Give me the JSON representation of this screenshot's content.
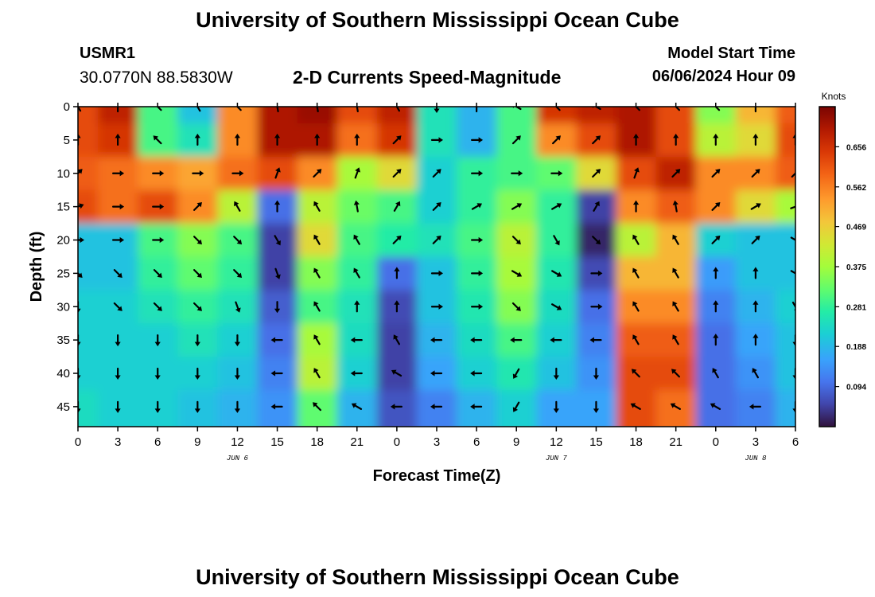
{
  "header": {
    "title": "University of Southern Mississippi Ocean Cube",
    "station_id": "USMR1",
    "coordinates": "30.0770N  88.5830W",
    "model_start_label": "Model Start Time",
    "model_start_value": "06/06/2024 Hour 09",
    "footer_title": "University of Southern Mississippi Ocean Cube"
  },
  "chart_data": {
    "type": "heatmap",
    "title": "2-D Currents Speed-Magnitude",
    "xlabel": "Forecast Time(Z)",
    "ylabel": "Depth (ft)",
    "x_tick_labels": [
      "0",
      "3",
      "6",
      "9",
      "12",
      "15",
      "18",
      "21",
      "0",
      "3",
      "6",
      "9",
      "12",
      "15",
      "18",
      "21",
      "0",
      "3",
      "6"
    ],
    "x_hours": [
      0,
      3,
      6,
      9,
      12,
      15,
      18,
      21,
      24,
      27,
      30,
      33,
      36,
      39,
      42,
      45,
      48,
      51,
      54
    ],
    "date_labels": [
      {
        "text": "JUN 6",
        "hour": 12
      },
      {
        "text": "JUN 7",
        "hour": 36
      },
      {
        "text": "JUN 8",
        "hour": 51
      }
    ],
    "y_ticks": [
      0,
      5,
      10,
      15,
      20,
      25,
      30,
      35,
      40,
      45
    ],
    "ylim": [
      0,
      48
    ],
    "depths": [
      0,
      5,
      10,
      15,
      20,
      25,
      30,
      35,
      40,
      45
    ],
    "colorbar": {
      "units": "Knots",
      "min": 0.0,
      "max": 0.75,
      "ticks": [
        0.656,
        0.562,
        0.469,
        0.375,
        0.281,
        0.188,
        0.094
      ],
      "tick_labels": [
        "0.656",
        "0.562",
        "0.469",
        "0.375",
        "0.281",
        "0.188",
        "0.094"
      ]
    },
    "speed_grid": [
      [
        0.62,
        0.68,
        0.3,
        0.2,
        0.55,
        0.7,
        0.72,
        0.62,
        0.68,
        0.25,
        0.18,
        0.3,
        0.65,
        0.68,
        0.7,
        0.62,
        0.35,
        0.5,
        0.6
      ],
      [
        0.62,
        0.65,
        0.3,
        0.25,
        0.55,
        0.7,
        0.7,
        0.58,
        0.65,
        0.25,
        0.18,
        0.3,
        0.55,
        0.62,
        0.7,
        0.62,
        0.4,
        0.45,
        0.62
      ],
      [
        0.6,
        0.58,
        0.55,
        0.52,
        0.58,
        0.62,
        0.55,
        0.38,
        0.45,
        0.22,
        0.28,
        0.3,
        0.32,
        0.45,
        0.62,
        0.68,
        0.55,
        0.55,
        0.6
      ],
      [
        0.62,
        0.58,
        0.62,
        0.55,
        0.4,
        0.1,
        0.4,
        0.33,
        0.3,
        0.22,
        0.28,
        0.35,
        0.28,
        0.05,
        0.55,
        0.6,
        0.55,
        0.45,
        0.38
      ],
      [
        0.2,
        0.2,
        0.3,
        0.35,
        0.3,
        0.05,
        0.45,
        0.3,
        0.27,
        0.25,
        0.3,
        0.4,
        0.28,
        0.02,
        0.4,
        0.5,
        0.22,
        0.2,
        0.2
      ],
      [
        0.2,
        0.2,
        0.28,
        0.32,
        0.28,
        0.05,
        0.35,
        0.28,
        0.1,
        0.2,
        0.28,
        0.38,
        0.26,
        0.06,
        0.5,
        0.5,
        0.15,
        0.2,
        0.2
      ],
      [
        0.22,
        0.22,
        0.25,
        0.28,
        0.25,
        0.08,
        0.3,
        0.25,
        0.06,
        0.2,
        0.26,
        0.35,
        0.24,
        0.1,
        0.55,
        0.55,
        0.12,
        0.18,
        0.22
      ],
      [
        0.22,
        0.22,
        0.22,
        0.25,
        0.22,
        0.1,
        0.38,
        0.24,
        0.05,
        0.18,
        0.24,
        0.3,
        0.22,
        0.12,
        0.6,
        0.6,
        0.1,
        0.16,
        0.2
      ],
      [
        0.22,
        0.22,
        0.22,
        0.22,
        0.2,
        0.12,
        0.4,
        0.22,
        0.05,
        0.16,
        0.22,
        0.26,
        0.2,
        0.14,
        0.62,
        0.62,
        0.1,
        0.14,
        0.2
      ],
      [
        0.24,
        0.22,
        0.22,
        0.2,
        0.18,
        0.14,
        0.32,
        0.18,
        0.07,
        0.12,
        0.18,
        0.22,
        0.16,
        0.16,
        0.62,
        0.58,
        0.1,
        0.12,
        0.18
      ]
    ],
    "direction_grid_deg": [
      [
        150,
        180,
        135,
        150,
        135,
        170,
        170,
        170,
        150,
        0,
        180,
        120,
        135,
        120,
        135,
        135,
        135,
        180,
        135
      ],
      [
        180,
        180,
        135,
        180,
        180,
        180,
        180,
        180,
        225,
        270,
        270,
        225,
        225,
        225,
        180,
        180,
        180,
        180,
        180
      ],
      [
        225,
        270,
        270,
        270,
        270,
        200,
        225,
        200,
        225,
        225,
        270,
        270,
        270,
        225,
        200,
        225,
        225,
        225,
        225
      ],
      [
        250,
        270,
        270,
        225,
        150,
        180,
        150,
        170,
        210,
        225,
        240,
        240,
        240,
        210,
        180,
        170,
        225,
        240,
        250
      ],
      [
        270,
        270,
        270,
        315,
        315,
        330,
        150,
        150,
        225,
        225,
        270,
        315,
        330,
        315,
        150,
        150,
        225,
        225,
        300
      ],
      [
        315,
        315,
        315,
        315,
        315,
        340,
        150,
        150,
        180,
        270,
        270,
        300,
        300,
        270,
        150,
        150,
        180,
        180,
        300
      ],
      [
        0,
        315,
        315,
        315,
        340,
        0,
        150,
        180,
        180,
        270,
        270,
        315,
        300,
        270,
        150,
        150,
        180,
        180,
        330
      ],
      [
        0,
        0,
        0,
        0,
        0,
        90,
        150,
        90,
        150,
        90,
        90,
        90,
        90,
        90,
        150,
        150,
        180,
        180,
        0
      ],
      [
        0,
        0,
        0,
        0,
        0,
        90,
        150,
        90,
        120,
        90,
        90,
        30,
        0,
        0,
        135,
        135,
        150,
        150,
        0
      ],
      [
        0,
        0,
        0,
        0,
        0,
        90,
        135,
        120,
        90,
        90,
        90,
        30,
        0,
        0,
        120,
        120,
        120,
        90,
        0
      ]
    ]
  }
}
